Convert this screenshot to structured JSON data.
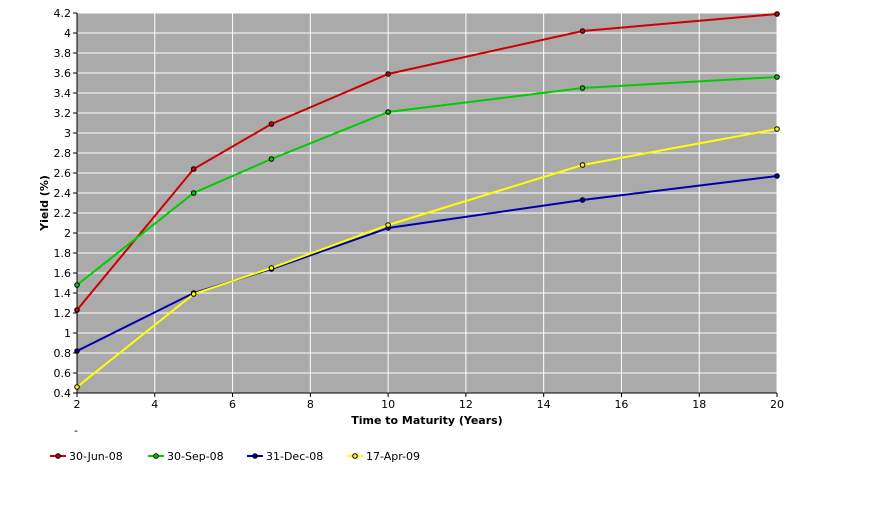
{
  "chart_data": {
    "type": "line",
    "title": "",
    "xlabel": "Time to Maturity (Years)",
    "ylabel": "Yield (%)",
    "xlim": [
      2,
      20
    ],
    "ylim": [
      0.4,
      4.2
    ],
    "xticks": [
      2,
      4,
      6,
      8,
      10,
      12,
      14,
      16,
      18,
      20
    ],
    "yticks": [
      0.4,
      0.6,
      0.8,
      1,
      1.2,
      1.4,
      1.6,
      1.8,
      2,
      2.2,
      2.4,
      2.6,
      2.8,
      3,
      3.2,
      3.4,
      3.6,
      3.8,
      4,
      4.2
    ],
    "grid": true,
    "legend_position": "bottom-left",
    "plot_background": "#aaaaaa",
    "x": [
      2,
      5,
      7,
      10,
      15,
      20
    ],
    "series": [
      {
        "name": "30-Jun-08",
        "color": "#cc0000",
        "values": [
          1.23,
          2.64,
          3.09,
          3.59,
          4.02,
          4.19
        ]
      },
      {
        "name": "30-Sep-08",
        "color": "#00cc00",
        "values": [
          1.48,
          2.4,
          2.74,
          3.21,
          3.45,
          3.56
        ]
      },
      {
        "name": "31-Dec-08",
        "color": "#0000aa",
        "values": [
          0.82,
          1.4,
          1.64,
          2.05,
          2.33,
          2.57
        ]
      },
      {
        "name": "17-Apr-09",
        "color": "#ffff00",
        "values": [
          0.46,
          1.39,
          1.65,
          2.08,
          2.68,
          3.04
        ]
      }
    ]
  }
}
